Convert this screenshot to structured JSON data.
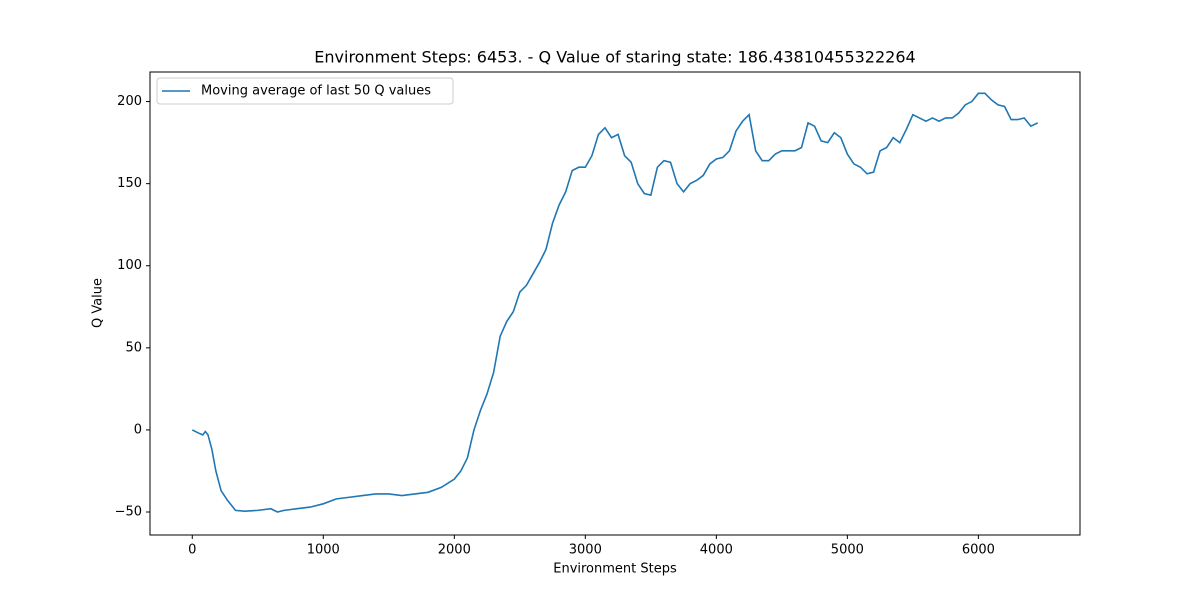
{
  "chart_data": {
    "type": "line",
    "title": "Environment Steps: 6453. - Q Value of staring state: 186.43810455322264",
    "x_label": "Environment Steps",
    "y_label": "Q Value",
    "x": [
      0,
      50,
      80,
      100,
      120,
      150,
      180,
      220,
      270,
      330,
      400,
      500,
      600,
      650,
      700,
      800,
      900,
      1000,
      1100,
      1200,
      1300,
      1400,
      1500,
      1600,
      1700,
      1800,
      1900,
      2000,
      2050,
      2100,
      2150,
      2200,
      2250,
      2300,
      2350,
      2400,
      2450,
      2500,
      2550,
      2600,
      2650,
      2700,
      2750,
      2800,
      2850,
      2900,
      2950,
      3000,
      3050,
      3100,
      3150,
      3200,
      3250,
      3300,
      3350,
      3400,
      3450,
      3500,
      3550,
      3600,
      3650,
      3700,
      3750,
      3800,
      3850,
      3900,
      3950,
      4000,
      4050,
      4100,
      4150,
      4200,
      4250,
      4300,
      4350,
      4400,
      4450,
      4500,
      4550,
      4600,
      4650,
      4700,
      4750,
      4800,
      4850,
      4900,
      4950,
      5000,
      5050,
      5100,
      5150,
      5200,
      5250,
      5300,
      5350,
      5400,
      5450,
      5500,
      5550,
      5600,
      5650,
      5700,
      5750,
      5800,
      5850,
      5900,
      5950,
      6000,
      6050,
      6100,
      6150,
      6200,
      6250,
      6300,
      6350,
      6400,
      6453
    ],
    "series": [
      {
        "name": "Moving average of last 50 Q values",
        "color": "#1f77b4",
        "values": [
          0,
          -2,
          -3,
          -1,
          -3,
          -12,
          -25,
          -37,
          -43,
          -49,
          -49.5,
          -49,
          -48,
          -50,
          -49,
          -48,
          -47,
          -45,
          -42,
          -41,
          -40,
          -39,
          -39,
          -40,
          -39,
          -38,
          -35,
          -30,
          -25,
          -17,
          0,
          12,
          22,
          35,
          57,
          66,
          72,
          84,
          88,
          95,
          102,
          110,
          126,
          137,
          145,
          158,
          160,
          160,
          167,
          180,
          184,
          178,
          180,
          167,
          163,
          150,
          144,
          143,
          160,
          164,
          163,
          150,
          145,
          150,
          152,
          155,
          162,
          165,
          166,
          170,
          182,
          188,
          192,
          170,
          164,
          164,
          168,
          170,
          170,
          170,
          172,
          187,
          185,
          176,
          175,
          181,
          178,
          168,
          162,
          160,
          156,
          157,
          170,
          172,
          178,
          175,
          183,
          192,
          190,
          188,
          190,
          188,
          190,
          190,
          193,
          198,
          200,
          205,
          205,
          201,
          198,
          197,
          189,
          189,
          190,
          185,
          187
        ]
      }
    ],
    "xlim": [
      -322.65,
      6775.65
    ],
    "ylim": [
      -64,
      218
    ],
    "xticks": [
      0,
      1000,
      2000,
      3000,
      4000,
      5000,
      6000
    ],
    "yticks": [
      {
        "value": -50,
        "label": "−50"
      },
      0,
      50,
      100,
      150,
      200
    ],
    "legend": "upper left"
  }
}
